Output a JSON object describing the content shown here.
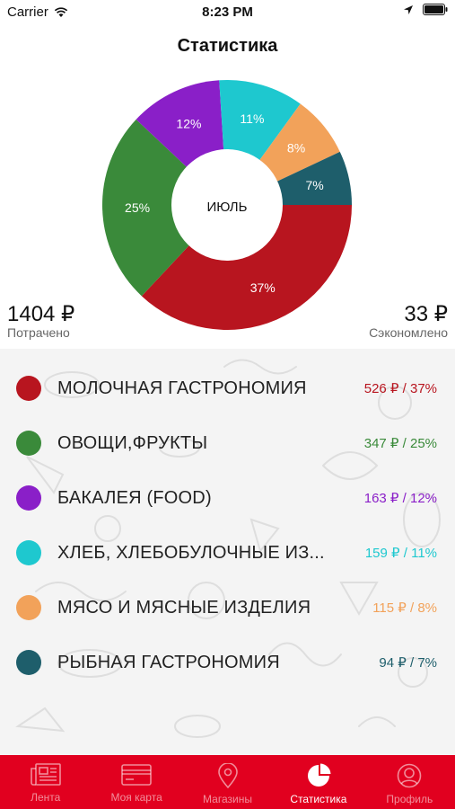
{
  "status_bar": {
    "carrier": "Carrier",
    "time": "8:23 PM"
  },
  "header": {
    "title": "Статистика"
  },
  "summary": {
    "spent_value": "1404 ₽",
    "spent_label": "Потрачено",
    "saved_value": "33 ₽",
    "saved_label": "Сэкономлено"
  },
  "chart_data": {
    "type": "pie",
    "center_label": "ИЮЛЬ",
    "slices": [
      {
        "label": "МОЛОЧНАЯ ГАСТРОНОМИЯ",
        "value": 37,
        "text": "37%",
        "color": "#b8151f"
      },
      {
        "label": "ОВОЩИ,ФРУКТЫ",
        "value": 25,
        "text": "25%",
        "color": "#3a8a3a"
      },
      {
        "label": "БАКАЛЕЯ (FOOD)",
        "value": 12,
        "text": "12%",
        "color": "#8a1fc8"
      },
      {
        "label": "ХЛЕБ, ХЛЕБОБУЛОЧНЫЕ ИЗ...",
        "value": 11,
        "text": "11%",
        "color": "#1ec8cf"
      },
      {
        "label": "МЯСО И МЯСНЫЕ ИЗДЕЛИЯ",
        "value": 8,
        "text": "8%",
        "color": "#f2a25a"
      },
      {
        "label": "РЫБНАЯ ГАСТРОНОМИЯ",
        "value": 7,
        "text": "7%",
        "color": "#1e5e6b"
      }
    ]
  },
  "categories": [
    {
      "name": "МОЛОЧНАЯ ГАСТРОНОМИЯ",
      "value": "526 ₽ / 37%",
      "color": "#b8151f"
    },
    {
      "name": "ОВОЩИ,ФРУКТЫ",
      "value": "347 ₽ / 25%",
      "color": "#3a8a3a"
    },
    {
      "name": "БАКАЛЕЯ (FOOD)",
      "value": "163 ₽ / 12%",
      "color": "#8a1fc8"
    },
    {
      "name": "ХЛЕБ, ХЛЕБОБУЛОЧНЫЕ ИЗ...",
      "value": "159 ₽ / 11%",
      "color": "#1ec8cf"
    },
    {
      "name": "МЯСО И МЯСНЫЕ ИЗДЕЛИЯ",
      "value": "115 ₽ / 8%",
      "color": "#f2a25a"
    },
    {
      "name": "РЫБНАЯ ГАСТРОНОМИЯ",
      "value": "94 ₽ / 7%",
      "color": "#1e5e6b"
    }
  ],
  "tabbar": {
    "items": [
      {
        "label": "Лента",
        "icon": "newspaper-icon",
        "active": false
      },
      {
        "label": "Моя карта",
        "icon": "card-icon",
        "active": false
      },
      {
        "label": "Магазины",
        "icon": "location-pin-icon",
        "active": false
      },
      {
        "label": "Статистика",
        "icon": "pie-chart-icon",
        "active": true
      },
      {
        "label": "Профиль",
        "icon": "profile-icon",
        "active": false
      }
    ]
  }
}
